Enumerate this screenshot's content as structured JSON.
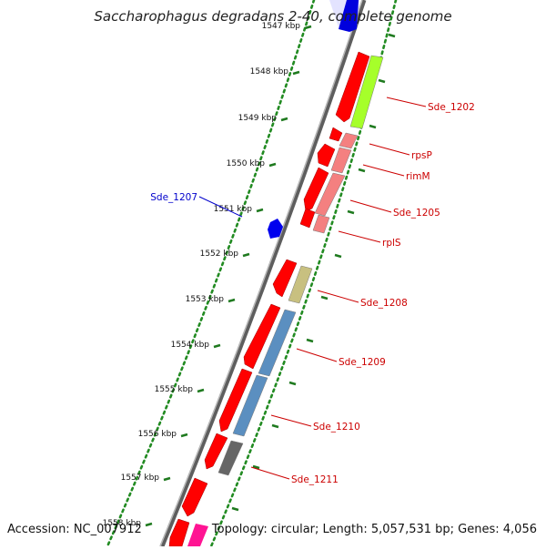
{
  "title": "Saccharophagus degradans 2-40, complete genome",
  "accession_text": "Accession: NC_007912",
  "summary_text": "Topology: circular; Length: 5,057,531 bp; Genes: 4,056",
  "scale_labels": [
    "1547 kbp",
    "1548 kbp",
    "1549 kbp",
    "1550 kbp",
    "1551 kbp",
    "1552 kbp",
    "1553 kbp",
    "1554 kbp",
    "1555 kbp",
    "1556 kbp",
    "1557 kbp",
    "1558 kbp"
  ],
  "colors": {
    "backbone": "#8a8a8a",
    "scale_dots": "#228b22",
    "cds": "#ff0000",
    "reverse_cds": "#0000ee",
    "gene_label_forward": "#cc0000",
    "gene_label_reverse": "#0000cc"
  },
  "gene_labels": [
    {
      "name": "Sde_1202",
      "color": "#cc0000",
      "side": "right"
    },
    {
      "name": "rpsP",
      "color": "#cc0000",
      "side": "right"
    },
    {
      "name": "rimM",
      "color": "#cc0000",
      "side": "right"
    },
    {
      "name": "Sde_1205",
      "color": "#cc0000",
      "side": "right"
    },
    {
      "name": "rplS",
      "color": "#cc0000",
      "side": "right"
    },
    {
      "name": "Sde_1207",
      "color": "#0000cc",
      "side": "left"
    },
    {
      "name": "Sde_1208",
      "color": "#cc0000",
      "side": "right"
    },
    {
      "name": "Sde_1209",
      "color": "#cc0000",
      "side": "right"
    },
    {
      "name": "Sde_1210",
      "color": "#cc0000",
      "side": "right"
    },
    {
      "name": "Sde_1211",
      "color": "#cc0000",
      "side": "right"
    }
  ],
  "features": [
    {
      "name": "Sde_1202",
      "strand": "+",
      "cog_color": "#a6ff2a"
    },
    {
      "name": "rpsP",
      "strand": "+",
      "cog_color": "#f48080"
    },
    {
      "name": "rimM",
      "strand": "+",
      "cog_color": "#f48080"
    },
    {
      "name": "Sde_1205",
      "strand": "+",
      "cog_color": "#f48080"
    },
    {
      "name": "rplS",
      "strand": "+",
      "cog_color": "#f48080"
    },
    {
      "name": "Sde_1207",
      "strand": "-",
      "cog_color": ""
    },
    {
      "name": "Sde_1208",
      "strand": "+",
      "cog_color": "#c8c080"
    },
    {
      "name": "Sde_1209",
      "strand": "+",
      "cog_color": "#5b8fc0"
    },
    {
      "name": "Sde_1210",
      "strand": "+",
      "cog_color": "#5b8fc0"
    },
    {
      "name": "Sde_1211",
      "strand": "+",
      "cog_color": "#666666"
    }
  ]
}
